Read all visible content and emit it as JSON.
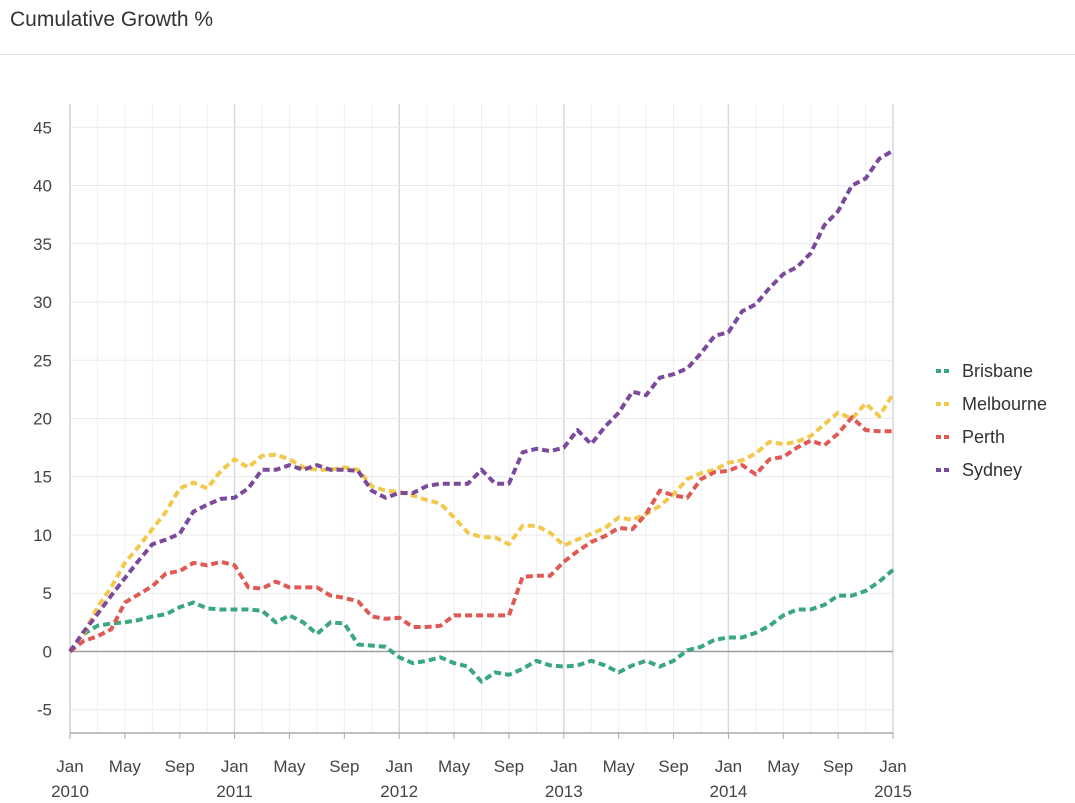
{
  "title": "Cumulative Growth %",
  "chart_data": {
    "type": "line",
    "title": "Cumulative Growth %",
    "xlabel": "",
    "ylabel": "",
    "ylim": [
      -7,
      47
    ],
    "yticks": [
      -5,
      0,
      5,
      10,
      15,
      20,
      25,
      30,
      35,
      40,
      45
    ],
    "x_months": 61,
    "x_ticks": [
      {
        "month": 0,
        "label": "Jan",
        "year": "2010"
      },
      {
        "month": 4,
        "label": "May",
        "year": ""
      },
      {
        "month": 8,
        "label": "Sep",
        "year": ""
      },
      {
        "month": 12,
        "label": "Jan",
        "year": "2011"
      },
      {
        "month": 16,
        "label": "May",
        "year": ""
      },
      {
        "month": 20,
        "label": "Sep",
        "year": ""
      },
      {
        "month": 24,
        "label": "Jan",
        "year": "2012"
      },
      {
        "month": 28,
        "label": "May",
        "year": ""
      },
      {
        "month": 32,
        "label": "Sep",
        "year": ""
      },
      {
        "month": 36,
        "label": "Jan",
        "year": "2013"
      },
      {
        "month": 40,
        "label": "May",
        "year": ""
      },
      {
        "month": 44,
        "label": "Sep",
        "year": ""
      },
      {
        "month": 48,
        "label": "Jan",
        "year": "2014"
      },
      {
        "month": 52,
        "label": "May",
        "year": ""
      },
      {
        "month": 56,
        "label": "Sep",
        "year": ""
      },
      {
        "month": 60,
        "label": "Jan",
        "year": "2015"
      }
    ],
    "legend_position": "right",
    "series": [
      {
        "name": "Brisbane",
        "color": "#3aa77f",
        "values": [
          0,
          1.5,
          2.2,
          2.4,
          2.5,
          2.7,
          3.0,
          3.2,
          3.8,
          4.2,
          3.7,
          3.6,
          3.6,
          3.6,
          3.5,
          2.5,
          3.1,
          2.5,
          1.5,
          2.5,
          2.4,
          0.6,
          0.5,
          0.4,
          -0.5,
          -1.0,
          -0.8,
          -0.5,
          -1.0,
          -1.3,
          -2.6,
          -1.8,
          -2.0,
          -1.5,
          -0.8,
          -1.2,
          -1.3,
          -1.2,
          -0.8,
          -1.2,
          -1.8,
          -1.2,
          -0.8,
          -1.3,
          -0.8,
          0.1,
          0.4,
          1.0,
          1.2,
          1.2,
          1.6,
          2.2,
          3.1,
          3.6,
          3.6,
          4.0,
          4.8,
          4.8,
          5.2,
          6.0,
          7.0
        ]
      },
      {
        "name": "Melbourne",
        "color": "#f2c94c",
        "values": [
          0,
          1.5,
          3.8,
          5.5,
          7.6,
          9.0,
          10.5,
          12.0,
          14.0,
          14.5,
          14.0,
          15.5,
          16.5,
          15.8,
          16.8,
          16.9,
          16.5,
          15.8,
          15.6,
          15.6,
          15.8,
          15.6,
          14.2,
          13.8,
          13.7,
          13.4,
          13.0,
          12.7,
          11.5,
          10.2,
          9.8,
          9.8,
          9.2,
          10.8,
          10.8,
          10.2,
          9.1,
          9.6,
          10.1,
          10.6,
          11.5,
          11.3,
          11.8,
          12.5,
          13.5,
          14.8,
          15.3,
          15.6,
          16.2,
          16.4,
          17.0,
          18.0,
          17.8,
          18.0,
          18.5,
          19.5,
          20.5,
          20.0,
          21.3,
          20.2,
          22.1
        ]
      },
      {
        "name": "Perth",
        "color": "#e05a55",
        "values": [
          0,
          0.9,
          1.3,
          1.9,
          4.2,
          4.9,
          5.6,
          6.7,
          6.9,
          7.6,
          7.4,
          7.7,
          7.4,
          5.5,
          5.4,
          6.0,
          5.5,
          5.5,
          5.5,
          4.8,
          4.6,
          4.3,
          3.0,
          2.8,
          2.9,
          2.1,
          2.1,
          2.2,
          3.1,
          3.1,
          3.1,
          3.1,
          3.1,
          6.4,
          6.5,
          6.5,
          7.7,
          8.6,
          9.4,
          9.9,
          10.6,
          10.5,
          11.8,
          13.8,
          13.4,
          13.2,
          14.8,
          15.4,
          15.5,
          16.0,
          15.2,
          16.5,
          16.7,
          17.5,
          18.1,
          17.7,
          18.7,
          20.1,
          19.0,
          18.9,
          18.9
        ]
      },
      {
        "name": "Sydney",
        "color": "#7b4a9c",
        "values": [
          0,
          1.7,
          3.2,
          4.8,
          6.3,
          7.8,
          9.2,
          9.6,
          10.1,
          12.0,
          12.6,
          13.1,
          13.2,
          14.0,
          15.6,
          15.6,
          16.0,
          15.6,
          16.0,
          15.6,
          15.6,
          15.5,
          13.8,
          13.2,
          13.6,
          13.6,
          14.2,
          14.4,
          14.4,
          14.4,
          15.6,
          14.4,
          14.4,
          17.1,
          17.4,
          17.2,
          17.5,
          19.0,
          17.8,
          19.3,
          20.5,
          22.3,
          22.0,
          23.5,
          23.8,
          24.3,
          25.6,
          27.1,
          27.4,
          29.2,
          29.8,
          31.2,
          32.4,
          33.0,
          34.2,
          36.6,
          37.8,
          40.0,
          40.6,
          42.3,
          43.0
        ]
      }
    ]
  }
}
